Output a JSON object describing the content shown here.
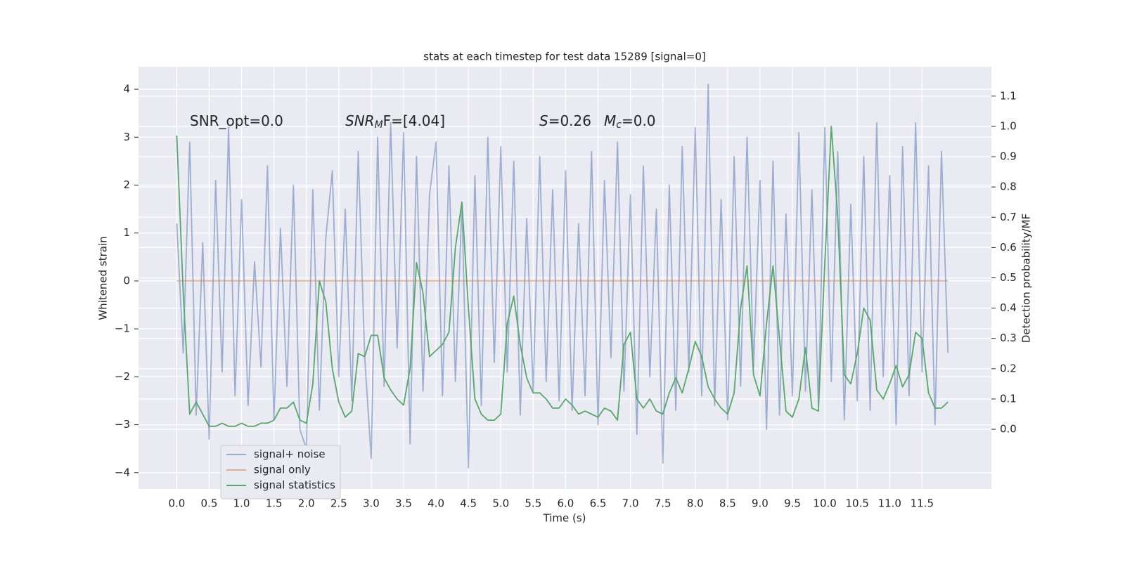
{
  "chart_data": {
    "type": "line",
    "title": "stats at each timestep for test data 15289 [signal=0]",
    "xlabel": "Time (s)",
    "ylabel": "Whitened strain",
    "y2label": "Detection probability/MF",
    "xlim": [
      -0.59,
      12.57
    ],
    "ylim": [
      -4.34,
      4.47
    ],
    "y2lim": [
      -0.197,
      1.197
    ],
    "xticks": [
      {
        "value": 0,
        "label": "0.0"
      },
      {
        "value": 0.5,
        "label": "0.5"
      },
      {
        "value": 1,
        "label": "1.0"
      },
      {
        "value": 1.5,
        "label": "1.5"
      },
      {
        "value": 2,
        "label": "2.0"
      },
      {
        "value": 2.5,
        "label": "2.5"
      },
      {
        "value": 3,
        "label": "3.0"
      },
      {
        "value": 3.5,
        "label": "3.5"
      },
      {
        "value": 4,
        "label": "4.0"
      },
      {
        "value": 4.5,
        "label": "4.5"
      },
      {
        "value": 5,
        "label": "5.0"
      },
      {
        "value": 5.5,
        "label": "5.5"
      },
      {
        "value": 6,
        "label": "6.0"
      },
      {
        "value": 6.5,
        "label": "6.5"
      },
      {
        "value": 7,
        "label": "7.0"
      },
      {
        "value": 7.5,
        "label": "7.5"
      },
      {
        "value": 8,
        "label": "8.0"
      },
      {
        "value": 8.5,
        "label": "8.5"
      },
      {
        "value": 9,
        "label": "9.0"
      },
      {
        "value": 9.5,
        "label": "9.5"
      },
      {
        "value": 10,
        "label": "10.0"
      },
      {
        "value": 10.5,
        "label": "10.5"
      },
      {
        "value": 11,
        "label": "11.0"
      },
      {
        "value": 11.5,
        "label": "11.5"
      }
    ],
    "yticks": [
      {
        "value": -4,
        "label": "−4"
      },
      {
        "value": -3,
        "label": "−3"
      },
      {
        "value": -2,
        "label": "−2"
      },
      {
        "value": -1,
        "label": "−1"
      },
      0,
      1,
      2,
      3,
      4
    ],
    "y2ticks": [
      {
        "value": 0,
        "label": "0.0"
      },
      {
        "value": 0.1,
        "label": "0.1"
      },
      {
        "value": 0.2,
        "label": "0.2"
      },
      {
        "value": 0.3,
        "label": "0.3"
      },
      {
        "value": 0.4,
        "label": "0.4"
      },
      {
        "value": 0.5,
        "label": "0.5"
      },
      {
        "value": 0.6,
        "label": "0.6"
      },
      {
        "value": 0.7,
        "label": "0.7"
      },
      {
        "value": 0.8,
        "label": "0.8"
      },
      {
        "value": 0.9,
        "label": "0.9"
      },
      {
        "value": 1,
        "label": "1.0"
      },
      {
        "value": 1.1,
        "label": "1.1"
      }
    ],
    "grid": true,
    "legend": "lower left",
    "annotations": [
      {
        "text": "SNR_opt=0.0"
      },
      {
        "text": "SNR",
        "sub": "M",
        "rest": "F=[4.04]",
        "italic": true
      },
      {
        "text": "S",
        "rest": "=0.26",
        "italic": true
      },
      {
        "text": "M",
        "sub": "c",
        "rest": "=0.0",
        "italic": true
      }
    ],
    "series": [
      {
        "name": "signal+ noise",
        "color": "#4c72b0",
        "opacity": 0.5,
        "x": [
          0,
          0.1,
          0.2,
          0.3,
          0.4,
          0.5,
          0.6,
          0.7,
          0.8,
          0.9,
          1,
          1.1,
          1.2,
          1.3,
          1.4,
          1.5,
          1.6,
          1.7,
          1.8,
          1.9,
          2,
          2.1,
          2.2,
          2.3,
          2.4,
          2.5,
          2.6,
          2.7,
          2.8,
          2.9,
          3,
          3.1,
          3.2,
          3.3,
          3.4,
          3.5,
          3.6,
          3.7,
          3.8,
          3.9,
          4,
          4.1,
          4.2,
          4.3,
          4.4,
          4.5,
          4.6,
          4.7,
          4.8,
          4.9,
          5,
          5.1,
          5.2,
          5.3,
          5.4,
          5.5,
          5.6,
          5.7,
          5.8,
          5.9,
          6,
          6.1,
          6.2,
          6.3,
          6.4,
          6.5,
          6.6,
          6.7,
          6.8,
          6.9,
          7,
          7.1,
          7.2,
          7.3,
          7.4,
          7.5,
          7.6,
          7.7,
          7.8,
          7.9,
          8,
          8.1,
          8.2,
          8.3,
          8.4,
          8.5,
          8.6,
          8.7,
          8.8,
          8.9,
          9,
          9.1,
          9.2,
          9.3,
          9.4,
          9.5,
          9.6,
          9.7,
          9.8,
          9.9,
          10,
          10.1,
          10.2,
          10.3,
          10.4,
          10.5,
          10.6,
          10.7,
          10.8,
          10.9,
          11,
          11.1,
          11.2,
          11.3,
          11.4,
          11.5,
          11.6,
          11.7,
          11.8,
          11.9
        ],
        "values": [
          1.2,
          -1.5,
          2.9,
          -2.8,
          0.8,
          -3.3,
          2.1,
          -1.9,
          3.2,
          -2.4,
          1.7,
          -2.6,
          0.4,
          -1.8,
          2.4,
          -2.9,
          1.1,
          -2.2,
          2.0,
          -3.1,
          -3.5,
          1.9,
          -2.7,
          0.9,
          2.3,
          -2.0,
          1.5,
          -2.5,
          2.7,
          -1.6,
          -3.7,
          3.0,
          -2.2,
          3.3,
          -1.4,
          3.1,
          -3.4,
          2.6,
          -2.3,
          1.8,
          2.9,
          -2.4,
          2.4,
          -2.1,
          1.6,
          -3.9,
          2.2,
          -2.6,
          3.0,
          -1.7,
          2.8,
          -1.9,
          2.5,
          -2.8,
          1.3,
          -2.3,
          2.6,
          -2.1,
          1.9,
          -2.5,
          2.3,
          -2.7,
          1.2,
          -2.4,
          2.7,
          -3.0,
          2.1,
          -1.6,
          2.9,
          -2.3,
          1.8,
          -3.2,
          2.4,
          -2.0,
          1.5,
          -3.8,
          2.0,
          -2.7,
          2.8,
          -1.9,
          3.2,
          -2.4,
          4.1,
          -2.6,
          1.7,
          -2.9,
          2.6,
          -2.2,
          3.0,
          -1.8,
          2.1,
          -3.1,
          2.5,
          -2.8,
          1.4,
          -2.4,
          3.1,
          -2.3,
          1.9,
          -2.6,
          3.2,
          -2.1,
          2.7,
          -2.9,
          1.6,
          -2.5,
          2.6,
          -2.7,
          3.3,
          -2.0,
          2.2,
          -3.0,
          2.8,
          -2.4,
          3.3,
          -1.9,
          2.4,
          -3.0,
          2.7,
          -1.5
        ]
      },
      {
        "name": "signal only",
        "color": "#dd8452",
        "opacity": 0.6,
        "x": [
          0,
          11.9
        ],
        "values": [
          0,
          0
        ]
      },
      {
        "name": "signal statistics",
        "color": "#55a868",
        "opacity": 1,
        "axis": "y2",
        "x": [
          0,
          0.1,
          0.2,
          0.3,
          0.4,
          0.5,
          0.6,
          0.7,
          0.8,
          0.9,
          1,
          1.1,
          1.2,
          1.3,
          1.4,
          1.5,
          1.6,
          1.7,
          1.8,
          1.9,
          2,
          2.1,
          2.2,
          2.3,
          2.4,
          2.5,
          2.6,
          2.7,
          2.8,
          2.9,
          3,
          3.1,
          3.2,
          3.3,
          3.4,
          3.5,
          3.6,
          3.7,
          3.8,
          3.9,
          4,
          4.1,
          4.2,
          4.3,
          4.4,
          4.5,
          4.6,
          4.7,
          4.8,
          4.9,
          5,
          5.1,
          5.2,
          5.3,
          5.4,
          5.5,
          5.6,
          5.7,
          5.8,
          5.9,
          6,
          6.1,
          6.2,
          6.3,
          6.4,
          6.5,
          6.6,
          6.7,
          6.8,
          6.9,
          7,
          7.1,
          7.2,
          7.3,
          7.4,
          7.5,
          7.6,
          7.7,
          7.8,
          7.9,
          8,
          8.1,
          8.2,
          8.3,
          8.4,
          8.5,
          8.6,
          8.7,
          8.8,
          8.9,
          9,
          9.1,
          9.2,
          9.3,
          9.4,
          9.5,
          9.6,
          9.7,
          9.8,
          9.9,
          10,
          10.1,
          10.2,
          10.3,
          10.4,
          10.5,
          10.6,
          10.7,
          10.8,
          10.9,
          11,
          11.1,
          11.2,
          11.3,
          11.4,
          11.5,
          11.6,
          11.7,
          11.8,
          11.9
        ],
        "values": [
          0.97,
          0.45,
          0.05,
          0.09,
          0.05,
          0.01,
          0.01,
          0.02,
          0.01,
          0.01,
          0.02,
          0.01,
          0.01,
          0.02,
          0.02,
          0.03,
          0.07,
          0.07,
          0.09,
          0.03,
          0.02,
          0.15,
          0.49,
          0.42,
          0.2,
          0.09,
          0.04,
          0.06,
          0.25,
          0.24,
          0.31,
          0.31,
          0.17,
          0.13,
          0.1,
          0.08,
          0.2,
          0.55,
          0.45,
          0.24,
          0.26,
          0.28,
          0.32,
          0.6,
          0.75,
          0.4,
          0.1,
          0.05,
          0.03,
          0.03,
          0.05,
          0.35,
          0.44,
          0.28,
          0.17,
          0.12,
          0.12,
          0.1,
          0.07,
          0.07,
          0.1,
          0.08,
          0.05,
          0.06,
          0.05,
          0.04,
          0.07,
          0.06,
          0.03,
          0.28,
          0.32,
          0.1,
          0.07,
          0.1,
          0.06,
          0.05,
          0.12,
          0.17,
          0.12,
          0.2,
          0.29,
          0.24,
          0.14,
          0.1,
          0.07,
          0.05,
          0.12,
          0.4,
          0.54,
          0.18,
          0.11,
          0.35,
          0.54,
          0.3,
          0.06,
          0.04,
          0.1,
          0.27,
          0.07,
          0.06,
          0.55,
          1.0,
          0.7,
          0.18,
          0.15,
          0.25,
          0.4,
          0.36,
          0.13,
          0.1,
          0.15,
          0.21,
          0.14,
          0.18,
          0.32,
          0.3,
          0.12,
          0.07,
          0.07,
          0.09
        ]
      }
    ]
  }
}
